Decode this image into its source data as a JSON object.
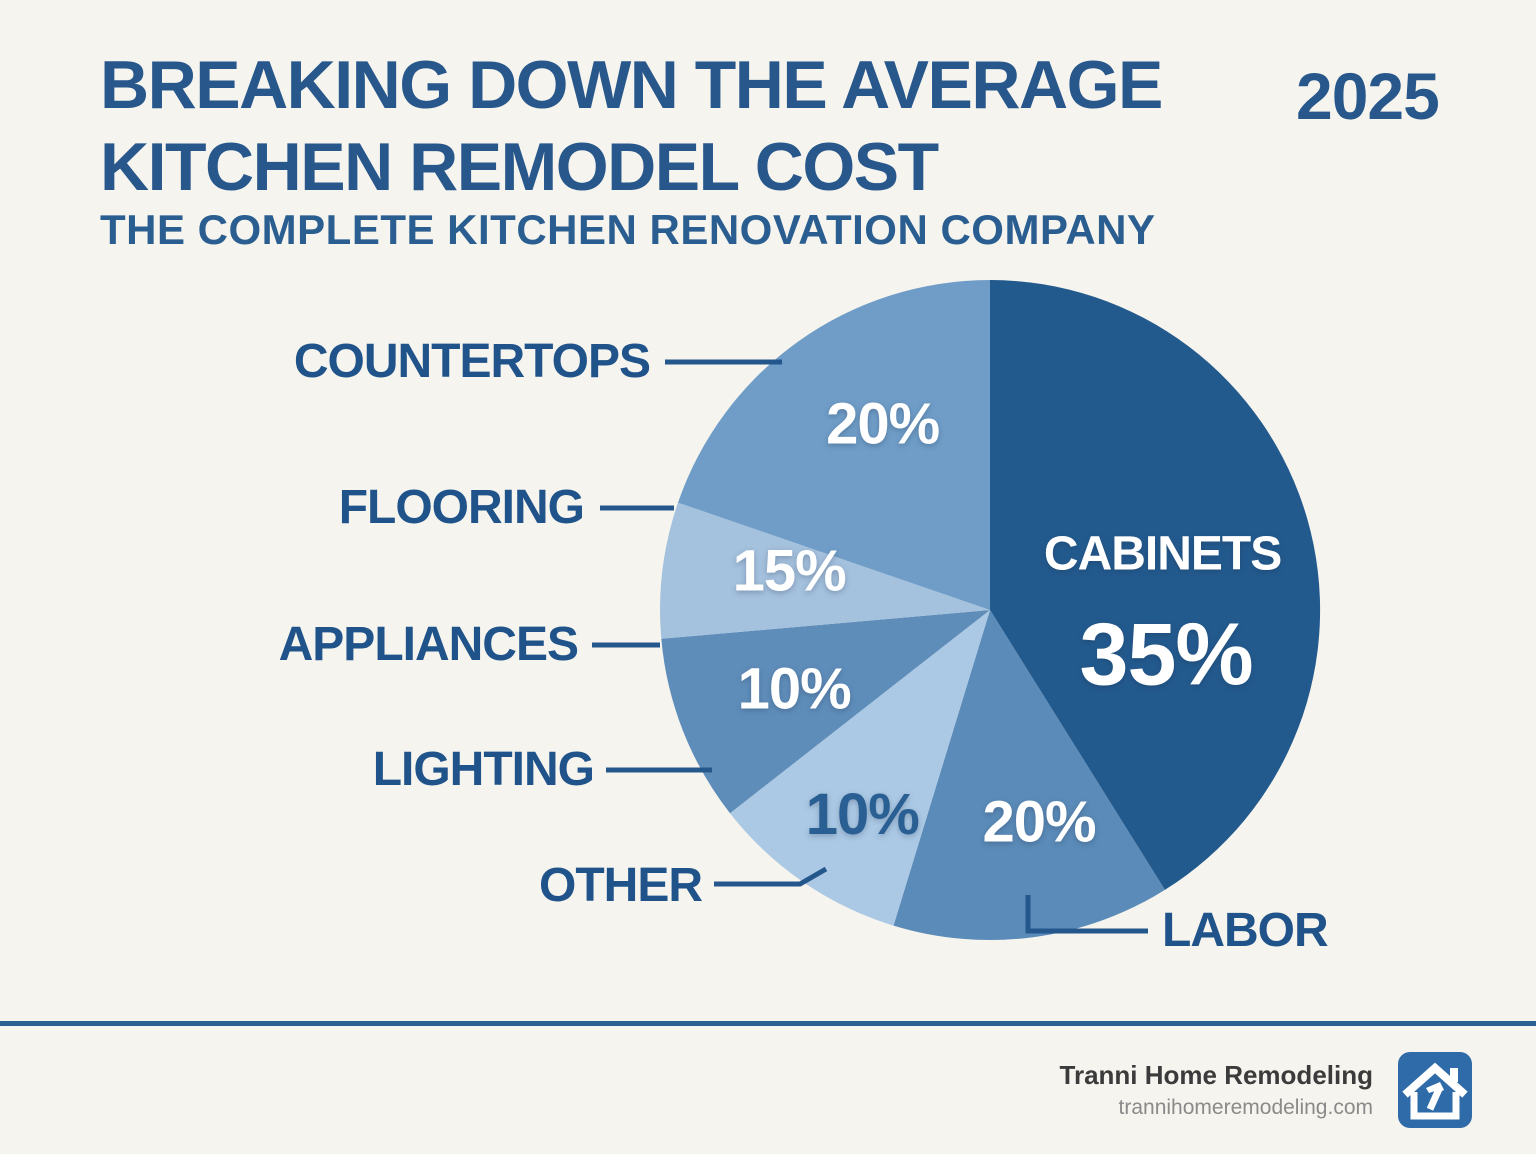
{
  "header": {
    "title_line1": "BREAKING DOWN THE AVERAGE",
    "title_line2": "KITCHEN REMODEL COST",
    "year": "2025",
    "subtitle": "THE COMPLETE KITCHEN RENOVATION COMPANY"
  },
  "colors": {
    "background": "#f6f4ee",
    "title": "#27578b",
    "callout_text": "#1f538a",
    "leader_line": "#24578b",
    "footer_rule": "#2c5f94",
    "logo_background": "#2e6ba8"
  },
  "chart_data": {
    "type": "pie",
    "title": "Breaking Down the Average Kitchen Remodel Cost",
    "legend_position": "callouts-left",
    "center": [
      990,
      610
    ],
    "radius": 330,
    "segments": [
      {
        "name": "CABINETS",
        "value": 35,
        "label": "35%",
        "color": "#235a8e",
        "start_deg": 0,
        "end_deg": 148,
        "label_angle": 104,
        "label_frac": 0.55,
        "label_color": "#ffffff",
        "inner_name": "CABINETS",
        "name_angle": 72,
        "name_frac": 0.55
      },
      {
        "name": "LABOR",
        "value": 20,
        "label": "20%",
        "color": "#5b8bb8",
        "start_deg": 148,
        "end_deg": 197,
        "label_angle": 167,
        "label_frac": 0.66,
        "label_color": "#ffffff"
      },
      {
        "name": "OTHER",
        "value": 10,
        "label": "10%",
        "color": "#abc9e5",
        "start_deg": 197,
        "end_deg": 232,
        "label_angle": 212,
        "label_frac": 0.73,
        "label_color": "#2a5f93"
      },
      {
        "name": "APPLIANCES",
        "value": 10,
        "label": "10%",
        "color": "#5f8dba",
        "start_deg": 232,
        "end_deg": 265,
        "label_angle": 248,
        "label_frac": 0.64,
        "label_color": "#ffffff"
      },
      {
        "name": "FLOORING",
        "value": 15,
        "label": "15%",
        "color": "#a4c1dd",
        "start_deg": 265,
        "end_deg": 289,
        "label_angle": 281,
        "label_frac": 0.62,
        "label_color": "#ffffff"
      },
      {
        "name": "COUNTERTOPS",
        "value": 20,
        "label": "20%",
        "color": "#6f9dc7",
        "start_deg": 289,
        "end_deg": 360,
        "label_angle": 330,
        "label_frac": 0.65,
        "label_color": "#ffffff"
      }
    ]
  },
  "callouts": {
    "countertops": {
      "label": "COUNTERTOPS"
    },
    "flooring": {
      "label": "FLOORING"
    },
    "appliances": {
      "label": "APPLIANCES"
    },
    "lighting": {
      "label": "LIGHTING"
    },
    "other": {
      "label": "OTHER"
    },
    "labor": {
      "label": "LABOR"
    }
  },
  "footer": {
    "company": "Tranni Home Remodeling",
    "website": "trannihomeremodeling.com",
    "logo": "house-hammer-icon"
  }
}
